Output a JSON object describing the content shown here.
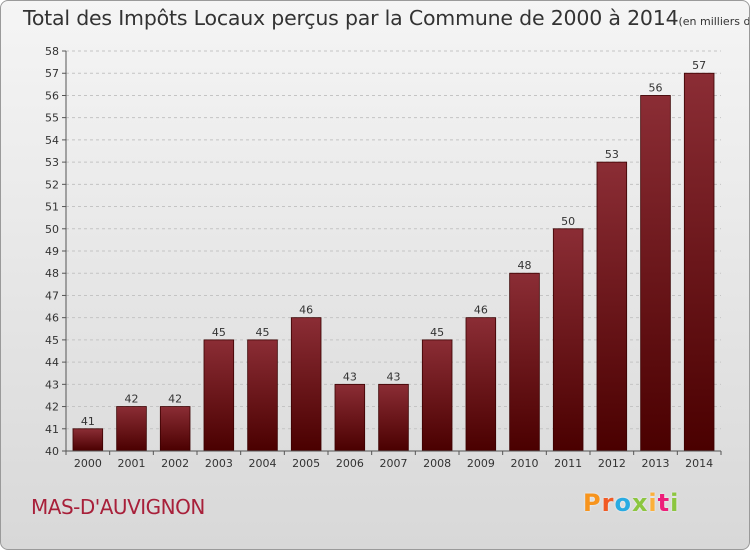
{
  "title": "Total des Impôts Locaux perçus par la Commune de 2000 à 2014",
  "unit_label": "(en milliers d'€)",
  "commune": "MAS-D'AUVIGNON",
  "logo": {
    "letters": [
      "P",
      "r",
      "o",
      "x",
      "i",
      "t",
      "i"
    ],
    "colors": [
      "#f7941d",
      "#f15a24",
      "#29abe2",
      "#8cc63f",
      "#fbb03b",
      "#ed1e79",
      "#8cc63f"
    ]
  },
  "chart_data": {
    "type": "bar",
    "categories": [
      "2000",
      "2001",
      "2002",
      "2003",
      "2004",
      "2005",
      "2006",
      "2007",
      "2008",
      "2009",
      "2010",
      "2011",
      "2012",
      "2013",
      "2014"
    ],
    "values": [
      41,
      42,
      42,
      45,
      45,
      46,
      43,
      43,
      45,
      46,
      48,
      50,
      53,
      56,
      57
    ],
    "ylim": [
      40,
      58
    ],
    "yticks": [
      40,
      41,
      42,
      43,
      44,
      45,
      46,
      47,
      48,
      49,
      50,
      51,
      52,
      53,
      54,
      55,
      56,
      57,
      58
    ],
    "bar_color_top": "#8b2d35",
    "bar_color_bottom": "#4a0000",
    "xlabel": "",
    "ylabel": ""
  }
}
